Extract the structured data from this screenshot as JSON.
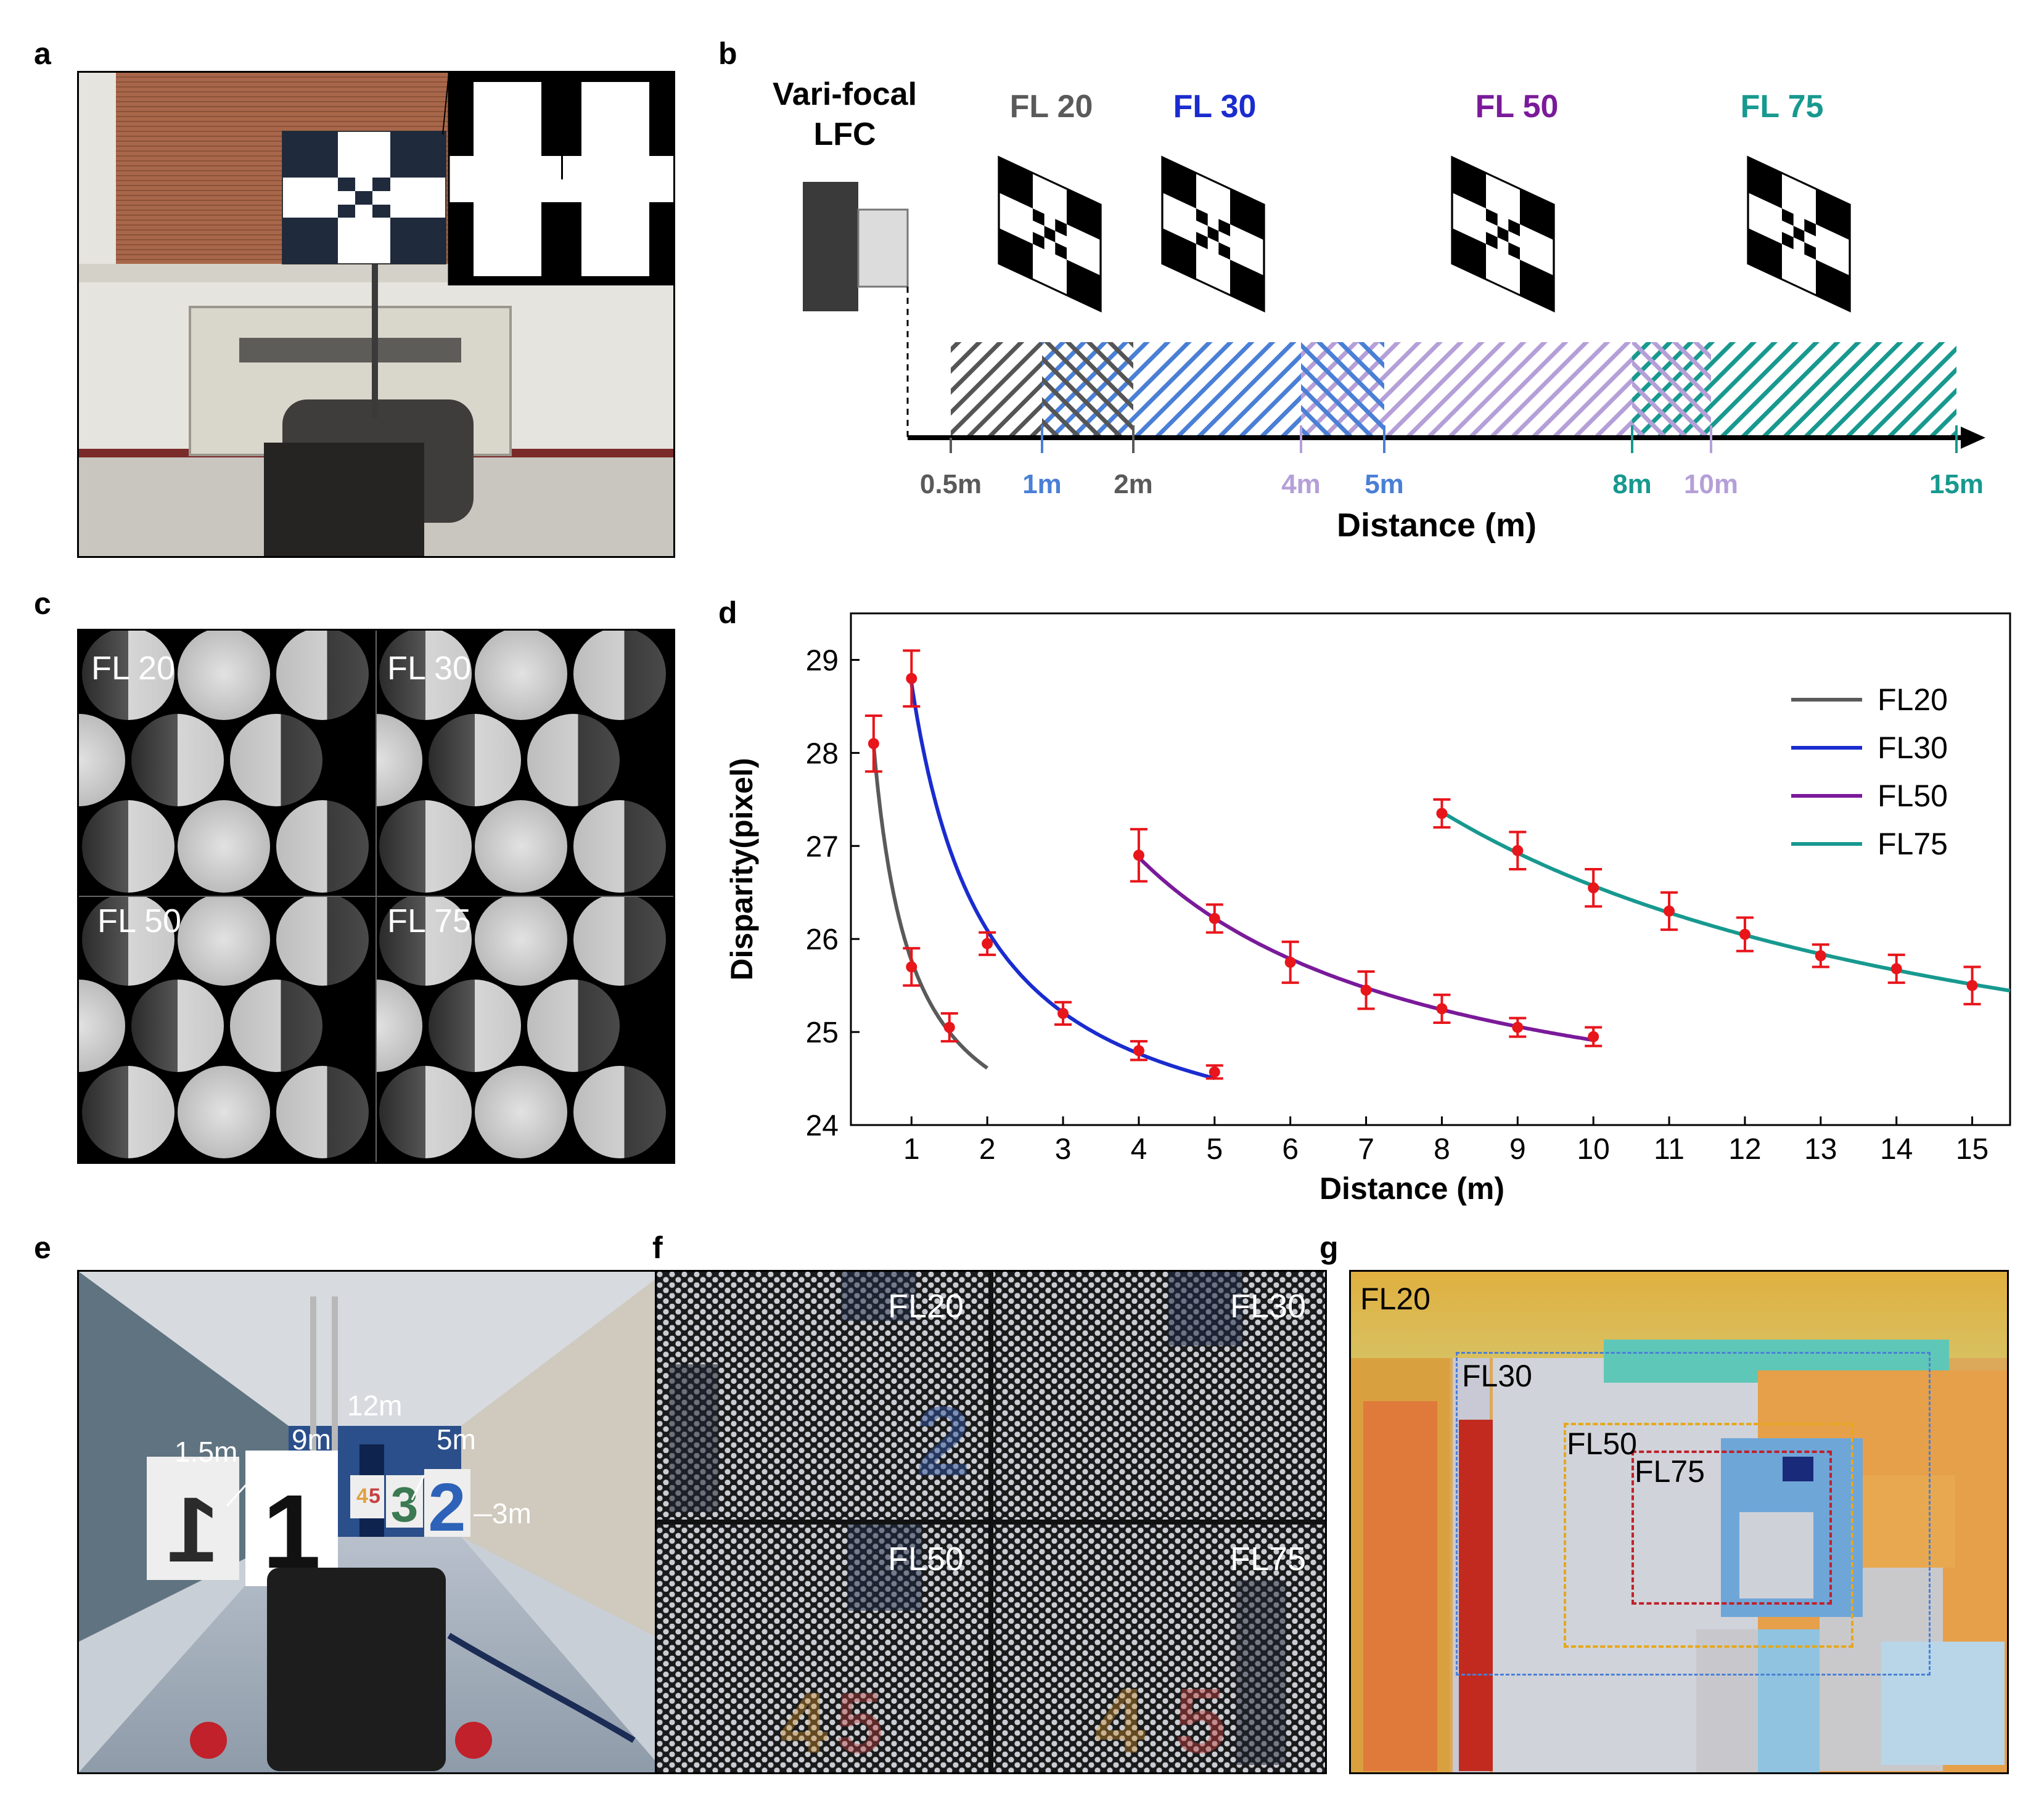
{
  "panel_labels": {
    "a": "a",
    "b": "b",
    "c": "c",
    "d": "d",
    "e": "e",
    "f": "f",
    "g": "g"
  },
  "panel_b": {
    "camera_label_line1": "Vari-focal",
    "camera_label_line2": "LFC",
    "fl_titles": [
      {
        "text": "FL 20",
        "color": "#5a5a5a"
      },
      {
        "text": "FL 30",
        "color": "#1a2ccf"
      },
      {
        "text": "FL 50",
        "color": "#7a1a9a"
      },
      {
        "text": "FL 75",
        "color": "#17998f"
      }
    ],
    "ticks": [
      {
        "text": "0.5m",
        "color": "#5a5a5a"
      },
      {
        "text": "1m",
        "color": "#4a7fd6"
      },
      {
        "text": "2m",
        "color": "#5a5a5a"
      },
      {
        "text": "4m",
        "color": "#b59fd8"
      },
      {
        "text": "5m",
        "color": "#4a7fd6"
      },
      {
        "text": "8m",
        "color": "#17998f"
      },
      {
        "text": "10m",
        "color": "#b59fd8"
      },
      {
        "text": "15m",
        "color": "#17998f"
      }
    ],
    "xlabel": "Distance (m)"
  },
  "panel_c": {
    "labels": [
      "FL 20",
      "FL 30",
      "FL 50",
      "FL 75"
    ]
  },
  "chart_data": {
    "type": "line",
    "title": "",
    "xlabel": "Distance (m)",
    "ylabel": "Disparity(pixel)",
    "xlim": [
      0.2,
      15.5
    ],
    "ylim": [
      24,
      29.5
    ],
    "xticks": [
      1,
      2,
      3,
      4,
      5,
      6,
      7,
      8,
      9,
      10,
      11,
      12,
      13,
      14,
      15
    ],
    "yticks": [
      24,
      25,
      26,
      27,
      28,
      29
    ],
    "legend": "top-right",
    "series": [
      {
        "name": "FL20",
        "color": "#5a5a5a",
        "x": [
          0.5,
          1,
          1.5
        ],
        "values": [
          28.1,
          25.7,
          25.05
        ],
        "err": [
          0.3,
          0.2,
          0.15
        ],
        "fit_range": [
          0.5,
          2
        ]
      },
      {
        "name": "FL30",
        "color": "#1a2ccf",
        "x": [
          1,
          2,
          3,
          4,
          5
        ],
        "values": [
          28.8,
          25.95,
          25.2,
          24.8,
          24.57
        ],
        "err": [
          0.3,
          0.12,
          0.12,
          0.1,
          0.07
        ],
        "fit_range": [
          1,
          5
        ]
      },
      {
        "name": "FL50",
        "color": "#7a1a9a",
        "x": [
          4,
          5,
          6,
          7,
          8,
          9,
          10
        ],
        "values": [
          26.9,
          26.22,
          25.75,
          25.45,
          25.25,
          25.05,
          24.95
        ],
        "err": [
          0.28,
          0.15,
          0.22,
          0.2,
          0.15,
          0.1,
          0.1
        ],
        "fit_range": [
          4,
          10
        ]
      },
      {
        "name": "FL75",
        "color": "#17998f",
        "x": [
          8,
          9,
          10,
          11,
          12,
          13,
          14,
          15
        ],
        "values": [
          27.35,
          26.95,
          26.55,
          26.3,
          26.05,
          25.82,
          25.68,
          25.5
        ],
        "err": [
          0.15,
          0.2,
          0.2,
          0.2,
          0.18,
          0.12,
          0.15,
          0.2
        ],
        "fit_range": [
          8,
          15.5
        ]
      }
    ]
  },
  "panel_e": {
    "labels": [
      "1.5m",
      "9m",
      "12m",
      "5m",
      "3m"
    ],
    "sign_numbers": [
      "1",
      "2",
      "3",
      "4",
      "5"
    ]
  },
  "panel_f": {
    "labels": [
      "FL20",
      "FL30",
      "FL50",
      "FL75"
    ]
  },
  "panel_g": {
    "labels": [
      "FL20",
      "FL30",
      "FL50",
      "FL75"
    ]
  }
}
